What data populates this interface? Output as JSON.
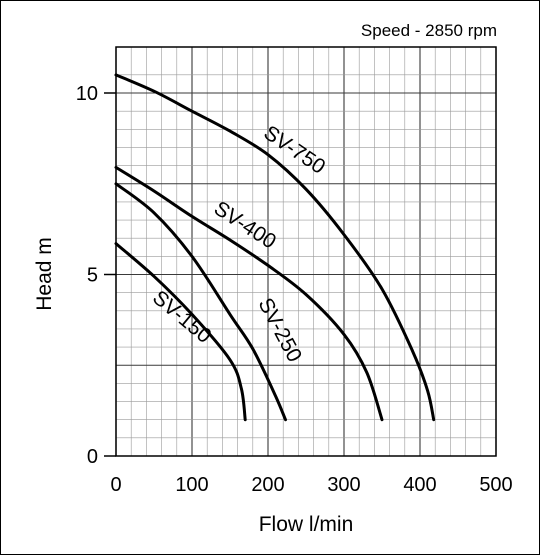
{
  "chart_data": {
    "type": "line",
    "annotation": "Speed - 2850 rpm",
    "xlabel": "Flow l/min",
    "ylabel": "Head m",
    "xlim": [
      0,
      500
    ],
    "ylim": [
      0,
      10.5
    ],
    "x_ticks": [
      0,
      100,
      200,
      300,
      400,
      500
    ],
    "y_ticks": [
      0,
      5,
      10
    ],
    "grid": true,
    "series": [
      {
        "name": "SV-750",
        "points": [
          [
            0,
            10.5
          ],
          [
            50,
            10.05
          ],
          [
            100,
            9.5
          ],
          [
            150,
            8.95
          ],
          [
            200,
            8.3
          ],
          [
            250,
            7.35
          ],
          [
            300,
            6.1
          ],
          [
            350,
            4.6
          ],
          [
            390,
            2.9
          ],
          [
            410,
            1.8
          ],
          [
            418,
            1.0
          ]
        ]
      },
      {
        "name": "SV-400",
        "points": [
          [
            0,
            7.95
          ],
          [
            50,
            7.3
          ],
          [
            100,
            6.6
          ],
          [
            150,
            5.95
          ],
          [
            200,
            5.25
          ],
          [
            250,
            4.45
          ],
          [
            300,
            3.35
          ],
          [
            330,
            2.3
          ],
          [
            350,
            1.0
          ]
        ]
      },
      {
        "name": "SV-250",
        "points": [
          [
            0,
            7.5
          ],
          [
            50,
            6.7
          ],
          [
            100,
            5.5
          ],
          [
            150,
            3.9
          ],
          [
            180,
            2.95
          ],
          [
            210,
            1.65
          ],
          [
            223,
            1.0
          ]
        ]
      },
      {
        "name": "SV-150",
        "points": [
          [
            0,
            5.85
          ],
          [
            50,
            4.95
          ],
          [
            100,
            3.9
          ],
          [
            150,
            2.65
          ],
          [
            165,
            1.85
          ],
          [
            170,
            1.0
          ]
        ]
      }
    ]
  }
}
